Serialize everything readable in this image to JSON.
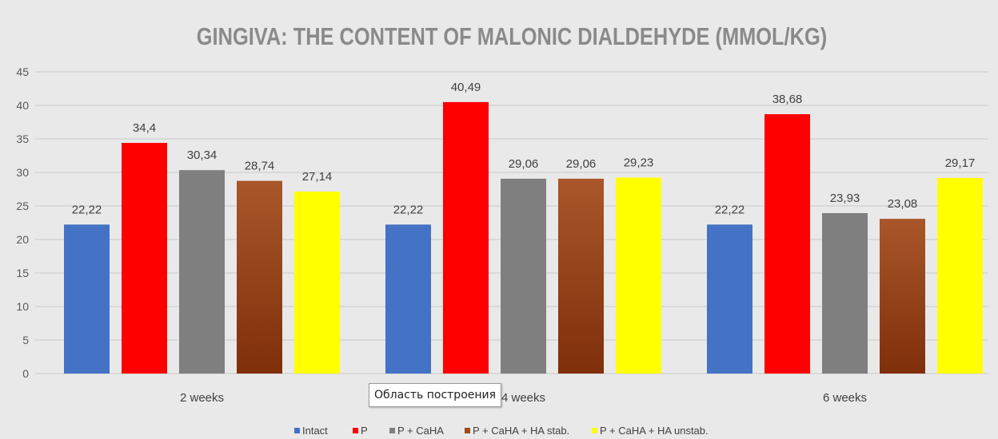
{
  "chart_data": {
    "type": "bar",
    "title": "GINGIVA: THE CONTENT OF MALONIC DIALDEHYDE (MMOL/KG)",
    "categories": [
      "2 weeks",
      "4 weeks",
      "6 weeks"
    ],
    "series": [
      {
        "name": "Intact",
        "color": "#4472c4",
        "values": [
          22.22,
          22.22,
          22.22
        ],
        "labels": [
          "22,22",
          "22,22",
          "22,22"
        ]
      },
      {
        "name": "P",
        "color": "#ff0000",
        "values": [
          34.4,
          40.49,
          38.68
        ],
        "labels": [
          "34,4",
          "40,49",
          "38,68"
        ]
      },
      {
        "name": "P + CaHA",
        "color": "#7f7f7f",
        "values": [
          30.34,
          29.06,
          23.93
        ],
        "labels": [
          "30,34",
          "29,06",
          "23,93"
        ]
      },
      {
        "name": "P + CaHA + HA stab.",
        "color": "#9e4a1c",
        "gradient_top": "#a9562a",
        "gradient_bottom": "#7f2f0a",
        "values": [
          28.74,
          29.06,
          23.08
        ],
        "labels": [
          "28,74",
          "29,06",
          "23,08"
        ]
      },
      {
        "name": "P + CaHA + HA unstab.",
        "color": "#ffff00",
        "values": [
          27.14,
          29.23,
          29.17
        ],
        "labels": [
          "27,14",
          "29,23",
          "29,17"
        ]
      }
    ],
    "ylim": [
      0,
      45
    ],
    "yticks": [
      0,
      5,
      10,
      15,
      20,
      25,
      30,
      35,
      40,
      45
    ],
    "grid": true,
    "legend": "bottom",
    "title_color": "#8a8a8a"
  },
  "tooltip": {
    "text": "Область построения"
  }
}
